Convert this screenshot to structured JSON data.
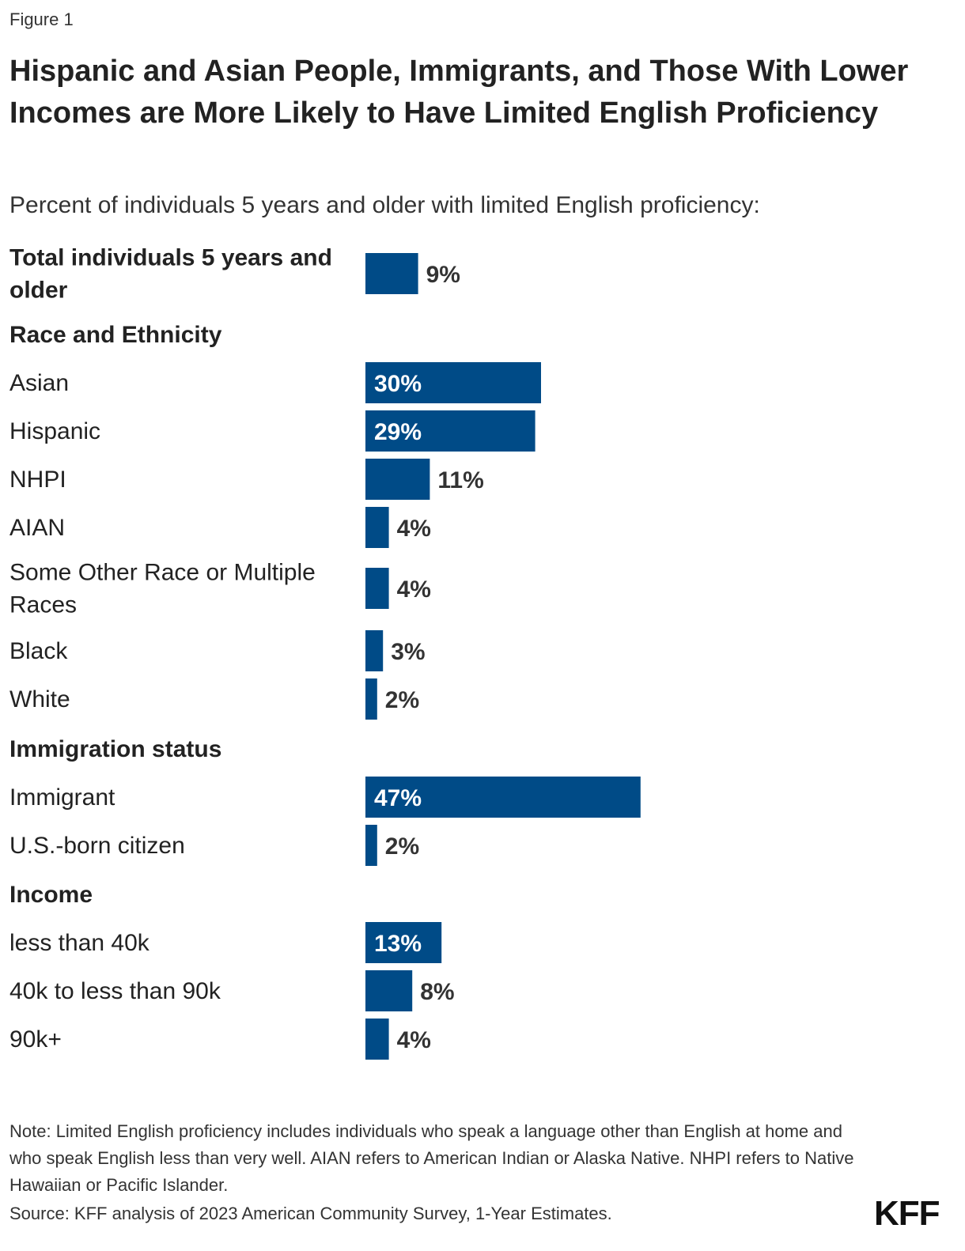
{
  "figure_label": "Figure 1",
  "colors": {
    "bar": "#004b87",
    "text": "#222222",
    "label_inside": "#ffffff"
  },
  "chart_data": {
    "type": "bar",
    "orientation": "horizontal",
    "title": "Hispanic and Asian People, Immigrants, and Those With Lower Incomes are More Likely to Have Limited English Proficiency",
    "subtitle": "Percent of individuals 5 years and older with limited English proficiency:",
    "unit": "%",
    "xlim": [
      0,
      50
    ],
    "rows": [
      {
        "kind": "bar",
        "label": "Total individuals 5 years and older",
        "value": 9,
        "bold": true
      },
      {
        "kind": "header",
        "label": "Race and Ethnicity"
      },
      {
        "kind": "bar",
        "label": "Asian",
        "value": 30
      },
      {
        "kind": "bar",
        "label": "Hispanic",
        "value": 29
      },
      {
        "kind": "bar",
        "label": "NHPI",
        "value": 11
      },
      {
        "kind": "bar",
        "label": "AIAN",
        "value": 4
      },
      {
        "kind": "bar",
        "label": "Some Other Race or Multiple Races",
        "value": 4
      },
      {
        "kind": "bar",
        "label": "Black",
        "value": 3
      },
      {
        "kind": "bar",
        "label": "White",
        "value": 2
      },
      {
        "kind": "header",
        "label": "Immigration status"
      },
      {
        "kind": "bar",
        "label": "Immigrant",
        "value": 47
      },
      {
        "kind": "bar",
        "label": "U.S.-born citizen",
        "value": 2
      },
      {
        "kind": "header",
        "label": "Income"
      },
      {
        "kind": "bar",
        "label": "less than 40k",
        "value": 13
      },
      {
        "kind": "bar",
        "label": "40k to less than 90k",
        "value": 8
      },
      {
        "kind": "bar",
        "label": "90k+",
        "value": 4
      }
    ]
  },
  "note": "Note: Limited English proficiency includes individuals who speak a language other than English at home and who speak English less than very well. AIAN refers to American Indian or Alaska Native. NHPI refers to Native Hawaiian or Pacific Islander.",
  "source": "Source: KFF analysis of 2023 American Community Survey, 1-Year Estimates.",
  "logo": "KFF"
}
